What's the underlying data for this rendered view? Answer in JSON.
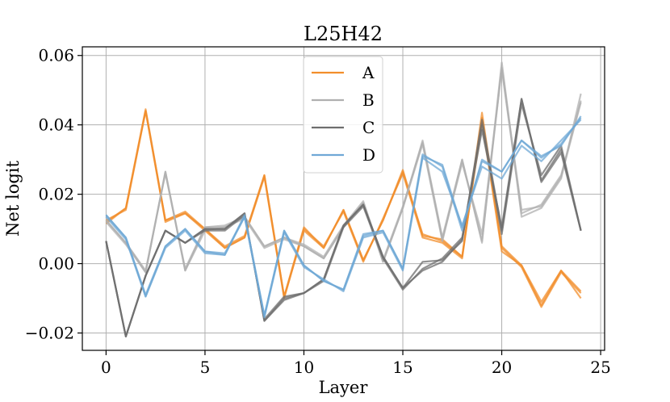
{
  "chart_data": {
    "type": "line",
    "title": "L25H42",
    "xlabel": "Layer",
    "ylabel": "Net logit",
    "xlim": [
      -1.2,
      25.2
    ],
    "ylim": [
      -0.025,
      0.0625
    ],
    "xticks": [
      0,
      5,
      10,
      15,
      20,
      25
    ],
    "xtick_labels": [
      "0",
      "5",
      "10",
      "15",
      "20",
      "25"
    ],
    "yticks": [
      -0.02,
      0.0,
      0.02,
      0.04,
      0.06
    ],
    "ytick_labels": [
      "−0.02",
      "0.00",
      "0.02",
      "0.04",
      "0.06"
    ],
    "grid": true,
    "legend_position": "top-center",
    "legend": [
      {
        "label": "A",
        "color": "#f28e2b"
      },
      {
        "label": "B",
        "color": "#b0b0b0"
      },
      {
        "label": "C",
        "color": "#6e6e6e"
      },
      {
        "label": "D",
        "color": "#6fa8d6"
      }
    ],
    "x": [
      0,
      1,
      2,
      3,
      4,
      5,
      6,
      7,
      8,
      9,
      10,
      11,
      12,
      13,
      14,
      15,
      16,
      17,
      18,
      19,
      20,
      21,
      22,
      23,
      24
    ],
    "series": [
      {
        "name": "A",
        "color": "#f28e2b",
        "values": [
          0.0115,
          0.016,
          0.0445,
          0.0125,
          0.015,
          0.01,
          0.005,
          0.008,
          0.0255,
          -0.0095,
          0.0105,
          0.0045,
          0.0155,
          0.001,
          0.0125,
          0.027,
          0.008,
          0.007,
          0.002,
          0.0435,
          0.005,
          -0.0005,
          -0.012,
          -0.002,
          -0.008
        ]
      },
      {
        "name": "A",
        "color": "#f28e2b",
        "values": [
          0.0125,
          0.0155,
          0.044,
          0.012,
          0.0145,
          0.0095,
          0.0045,
          0.0075,
          0.025,
          -0.01,
          0.01,
          0.005,
          0.015,
          0.0005,
          0.013,
          0.026,
          0.0075,
          0.006,
          0.0015,
          0.042,
          0.0045,
          -0.001,
          -0.0125,
          -0.0025,
          -0.0085
        ]
      },
      {
        "name": "A",
        "color": "#f28e2b",
        "values": [
          0.012,
          0.016,
          0.044,
          0.0125,
          0.0145,
          0.01,
          0.0045,
          0.0075,
          0.0255,
          -0.0095,
          0.0095,
          0.0045,
          0.0155,
          0.001,
          0.0125,
          0.0265,
          0.0085,
          0.0065,
          0.002,
          0.041,
          0.0035,
          -0.0005,
          -0.011,
          -0.002,
          -0.01
        ]
      },
      {
        "name": "B",
        "color": "#b0b0b0",
        "values": [
          0.0125,
          0.006,
          -0.0025,
          0.0265,
          -0.002,
          0.0105,
          0.0105,
          0.0135,
          0.005,
          0.0075,
          0.005,
          0.0015,
          0.0105,
          0.0175,
          0.0005,
          0.016,
          0.0355,
          0.0075,
          0.03,
          0.006,
          0.058,
          0.0135,
          0.016,
          0.0245,
          0.049
        ]
      },
      {
        "name": "B",
        "color": "#b0b0b0",
        "values": [
          0.0125,
          0.006,
          -0.002,
          0.026,
          -0.0015,
          0.0105,
          0.011,
          0.0135,
          0.005,
          0.0075,
          0.0055,
          0.002,
          0.011,
          0.018,
          0.001,
          0.0165,
          0.035,
          0.007,
          0.029,
          0.0085,
          0.056,
          0.0145,
          0.017,
          0.0255,
          0.047
        ]
      },
      {
        "name": "B",
        "color": "#b0b0b0",
        "values": [
          0.012,
          0.0055,
          -0.0025,
          0.0265,
          -0.002,
          0.0095,
          0.0105,
          0.013,
          0.0045,
          0.007,
          0.005,
          0.0015,
          0.0105,
          0.0175,
          0.0005,
          0.016,
          0.0345,
          0.0065,
          0.03,
          0.0065,
          0.0565,
          0.0155,
          0.0165,
          0.025,
          0.0465
        ]
      },
      {
        "name": "C",
        "color": "#6e6e6e",
        "values": [
          0.0065,
          -0.021,
          -0.0035,
          0.0095,
          0.006,
          0.01,
          0.01,
          0.0145,
          -0.0165,
          -0.0105,
          -0.0085,
          -0.0045,
          0.011,
          0.017,
          0.002,
          -0.007,
          0.0005,
          0.001,
          0.0065,
          0.0415,
          0.0095,
          0.0475,
          0.024,
          0.033,
          0.0095
        ]
      },
      {
        "name": "C",
        "color": "#6e6e6e",
        "values": [
          0.0065,
          -0.021,
          -0.0035,
          0.0095,
          0.006,
          0.0095,
          0.0095,
          0.014,
          -0.016,
          -0.0095,
          -0.0085,
          -0.005,
          0.0105,
          0.0165,
          0.0015,
          -0.0075,
          -0.0015,
          0.0015,
          0.0075,
          0.04,
          0.0085,
          0.046,
          0.0255,
          0.034,
          0.0095
        ]
      },
      {
        "name": "C",
        "color": "#6e6e6e",
        "values": [
          0.0065,
          -0.021,
          -0.0035,
          0.0095,
          0.006,
          0.01,
          0.01,
          0.0145,
          -0.0165,
          -0.01,
          -0.0085,
          -0.0045,
          0.011,
          0.017,
          0.002,
          -0.007,
          -0.002,
          0.0005,
          0.007,
          0.0385,
          0.0105,
          0.0475,
          0.0235,
          0.032,
          0.0095
        ]
      },
      {
        "name": "D",
        "color": "#6fa8d6",
        "values": [
          0.014,
          0.0075,
          -0.0095,
          0.005,
          0.01,
          0.0035,
          0.0025,
          0.014,
          -0.015,
          0.0095,
          -0.0005,
          -0.005,
          -0.0075,
          0.0085,
          0.0095,
          -0.0015,
          0.031,
          0.0285,
          0.0105,
          0.0295,
          0.0265,
          0.0355,
          0.0305,
          0.0345,
          0.042
        ]
      },
      {
        "name": "D",
        "color": "#6fa8d6",
        "values": [
          0.0135,
          0.007,
          -0.0095,
          0.0045,
          0.0095,
          0.003,
          0.0025,
          0.0135,
          -0.0155,
          0.009,
          -0.001,
          -0.0045,
          -0.008,
          0.0075,
          0.009,
          -0.002,
          0.0305,
          0.0265,
          0.011,
          0.028,
          0.0245,
          0.034,
          0.0295,
          0.0355,
          0.0415
        ]
      },
      {
        "name": "D",
        "color": "#6fa8d6",
        "values": [
          0.014,
          0.0075,
          -0.009,
          0.005,
          0.01,
          0.0035,
          0.003,
          0.0135,
          -0.015,
          0.0095,
          -0.0005,
          -0.005,
          -0.0075,
          0.008,
          0.0095,
          -0.0015,
          0.0315,
          0.028,
          0.0095,
          0.03,
          0.0265,
          0.0355,
          0.031,
          0.034,
          0.0425
        ]
      }
    ]
  }
}
